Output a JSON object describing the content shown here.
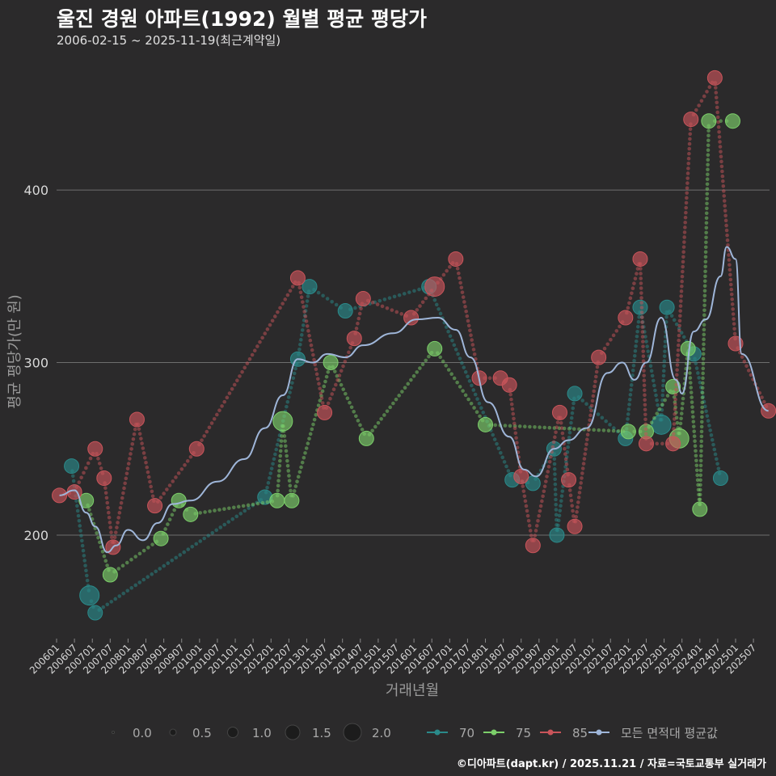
{
  "header": {
    "title": "울진 경원 아파트(1992) 월별 평균 평당가",
    "subtitle": "2006-02-15 ~ 2025-11-19(최근계약일)"
  },
  "footer": "©디아파트(dapt.kr) / 2025.11.21 / 자료=국토교통부 실거래가",
  "colors": {
    "background": "#2b2a2b",
    "s70": "#2a8a8a",
    "s75": "#7ccf6a",
    "s85": "#c9545a",
    "avg": "#9fb6d9",
    "grid": "#6e6e6e"
  },
  "chart_data": {
    "type": "line",
    "title": "울진 경원 아파트(1992) 월별 평균 평당가",
    "xlabel": "거래년월",
    "ylabel": "평균 평당가(만 원)",
    "xlim": [
      2006.0,
      2025.95
    ],
    "ylim": [
      140,
      475
    ],
    "yticks": [
      200,
      300,
      400
    ],
    "xticks": [
      "200601",
      "200607",
      "200701",
      "200707",
      "200801",
      "200807",
      "200901",
      "200907",
      "201001",
      "201007",
      "201101",
      "201107",
      "201201",
      "201207",
      "201301",
      "201307",
      "201401",
      "201407",
      "201501",
      "201507",
      "201601",
      "201607",
      "201701",
      "201707",
      "201801",
      "201807",
      "201901",
      "201907",
      "202001",
      "202007",
      "202101",
      "202107",
      "202201",
      "202207",
      "202301",
      "202307",
      "202401",
      "202407",
      "202501",
      "202507"
    ],
    "size_legend": {
      "title": "",
      "values": [
        "0.0",
        "0.5",
        "1.0",
        "1.5",
        "2.0"
      ]
    },
    "series": [
      {
        "name": "70",
        "color": "#2a8a8a",
        "points": [
          [
            2006.42,
            240,
            1
          ],
          [
            2006.92,
            165,
            2
          ],
          [
            2007.08,
            155,
            1
          ],
          [
            2011.83,
            222,
            1
          ],
          [
            2012.75,
            302,
            1
          ],
          [
            2013.08,
            344,
            1
          ],
          [
            2014.08,
            330,
            1
          ],
          [
            2016.42,
            344,
            1
          ],
          [
            2018.75,
            232,
            1
          ],
          [
            2019.33,
            230,
            1
          ],
          [
            2019.92,
            250,
            1
          ],
          [
            2020.0,
            200,
            1
          ],
          [
            2020.5,
            282,
            1
          ],
          [
            2021.92,
            256,
            1
          ],
          [
            2022.33,
            332,
            1
          ],
          [
            2022.92,
            264,
            2
          ],
          [
            2023.08,
            332,
            1
          ],
          [
            2023.83,
            305,
            1
          ],
          [
            2024.58,
            233,
            1
          ]
        ]
      },
      {
        "name": "75",
        "color": "#7ccf6a",
        "points": [
          [
            2006.83,
            220,
            1
          ],
          [
            2007.5,
            177,
            1
          ],
          [
            2008.92,
            198,
            1
          ],
          [
            2009.42,
            220,
            1
          ],
          [
            2009.75,
            212,
            1
          ],
          [
            2012.17,
            220,
            1
          ],
          [
            2012.33,
            266,
            2
          ],
          [
            2012.58,
            220,
            1
          ],
          [
            2013.67,
            300,
            1
          ],
          [
            2014.67,
            256,
            1
          ],
          [
            2016.58,
            308,
            1
          ],
          [
            2018.0,
            264,
            1
          ],
          [
            2022.0,
            260,
            1
          ],
          [
            2022.5,
            260,
            1
          ],
          [
            2023.25,
            286,
            1
          ],
          [
            2023.42,
            256,
            2
          ],
          [
            2023.67,
            308,
            1
          ],
          [
            2024.0,
            215,
            1
          ],
          [
            2024.25,
            440,
            1
          ],
          [
            2024.92,
            440,
            1
          ]
        ]
      },
      {
        "name": "85",
        "color": "#c9545a",
        "points": [
          [
            2006.08,
            223,
            1
          ],
          [
            2006.5,
            225,
            1
          ],
          [
            2007.08,
            250,
            1
          ],
          [
            2007.33,
            233,
            1
          ],
          [
            2007.58,
            193,
            1
          ],
          [
            2008.25,
            267,
            1
          ],
          [
            2008.75,
            217,
            1
          ],
          [
            2009.92,
            250,
            1
          ],
          [
            2012.75,
            349,
            1
          ],
          [
            2013.5,
            271,
            1
          ],
          [
            2014.33,
            314,
            1
          ],
          [
            2014.58,
            337,
            1
          ],
          [
            2015.92,
            326,
            1
          ],
          [
            2016.58,
            344,
            2
          ],
          [
            2017.17,
            360,
            1
          ],
          [
            2017.83,
            291,
            1
          ],
          [
            2018.42,
            291,
            1
          ],
          [
            2018.67,
            287,
            1
          ],
          [
            2019.0,
            234,
            1
          ],
          [
            2019.33,
            194,
            1
          ],
          [
            2020.08,
            271,
            1
          ],
          [
            2020.33,
            232,
            1
          ],
          [
            2020.5,
            205,
            1
          ],
          [
            2021.17,
            303,
            1
          ],
          [
            2021.92,
            326,
            1
          ],
          [
            2022.33,
            360,
            1
          ],
          [
            2022.5,
            253,
            1
          ],
          [
            2023.25,
            253,
            1
          ],
          [
            2023.75,
            441,
            1
          ],
          [
            2024.42,
            465,
            1
          ],
          [
            2025.0,
            311,
            1
          ],
          [
            2025.92,
            272,
            1
          ]
        ]
      },
      {
        "name": "모든 면적대 평균값",
        "color": "#9fb6d9",
        "points": [
          [
            2006.08,
            223
          ],
          [
            2006.5,
            226
          ],
          [
            2006.83,
            213
          ],
          [
            2007.08,
            205
          ],
          [
            2007.42,
            190
          ],
          [
            2007.67,
            194
          ],
          [
            2008.0,
            203
          ],
          [
            2008.42,
            197
          ],
          [
            2008.83,
            207
          ],
          [
            2009.25,
            218
          ],
          [
            2009.75,
            220
          ],
          [
            2010.5,
            231
          ],
          [
            2011.25,
            244
          ],
          [
            2011.83,
            262
          ],
          [
            2012.33,
            281
          ],
          [
            2012.75,
            302
          ],
          [
            2013.17,
            300
          ],
          [
            2013.58,
            305
          ],
          [
            2014.08,
            303
          ],
          [
            2014.58,
            310
          ],
          [
            2015.42,
            317
          ],
          [
            2016.08,
            325
          ],
          [
            2016.67,
            326
          ],
          [
            2017.17,
            319
          ],
          [
            2017.58,
            303
          ],
          [
            2018.08,
            277
          ],
          [
            2018.67,
            257
          ],
          [
            2019.08,
            238
          ],
          [
            2019.42,
            234
          ],
          [
            2019.92,
            250
          ],
          [
            2020.33,
            255
          ],
          [
            2020.83,
            262
          ],
          [
            2021.42,
            294
          ],
          [
            2021.83,
            300
          ],
          [
            2022.17,
            290
          ],
          [
            2022.5,
            300
          ],
          [
            2022.92,
            326
          ],
          [
            2023.33,
            290
          ],
          [
            2023.5,
            282
          ],
          [
            2023.83,
            318
          ],
          [
            2024.17,
            325
          ],
          [
            2024.58,
            350
          ],
          [
            2024.75,
            367
          ],
          [
            2025.0,
            360
          ],
          [
            2025.17,
            305
          ],
          [
            2025.92,
            272
          ]
        ]
      }
    ]
  }
}
